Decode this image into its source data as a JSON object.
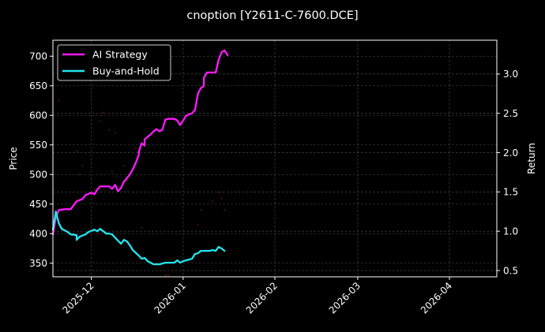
{
  "chart_data": {
    "type": "line",
    "title": "cnoption [Y2611-C-7600.DCE]",
    "xlabel": "",
    "ylabel_left": "Price",
    "ylabel_right": "Return",
    "background": "#000000",
    "grid": true,
    "legend_position": "upper left",
    "x_ticks": [
      "2025-12",
      "2026-01",
      "2026-02",
      "2026-03",
      "2026-04"
    ],
    "x_range": [
      "2025-11-18",
      "2026-04-17"
    ],
    "y_left_ticks": [
      350,
      400,
      450,
      500,
      550,
      600,
      650,
      700
    ],
    "y_left_range": [
      327,
      727
    ],
    "y_right_ticks": [
      0.5,
      1.0,
      1.5,
      2.0,
      2.5,
      3.0
    ],
    "y_right_range": [
      0.42,
      3.43
    ],
    "series": [
      {
        "name": "AI Strategy",
        "axis": "right",
        "color": "#ff1aff",
        "x": [
          "2025-11-18",
          "2025-11-19",
          "2025-11-20",
          "2025-11-22",
          "2025-11-24",
          "2025-11-25",
          "2025-11-26",
          "2025-11-28",
          "2025-11-29",
          "2025-12-01",
          "2025-12-02",
          "2025-12-03",
          "2025-12-04",
          "2025-12-06",
          "2025-12-07",
          "2025-12-08",
          "2025-12-09",
          "2025-12-10",
          "2025-12-11",
          "2025-12-12",
          "2025-12-14",
          "2025-12-15",
          "2025-12-16",
          "2025-12-17",
          "2025-12-17",
          "2025-12-18",
          "2025-12-19",
          "2025-12-19",
          "2025-12-21",
          "2025-12-22",
          "2025-12-23",
          "2025-12-24",
          "2025-12-25",
          "2025-12-26",
          "2025-12-27",
          "2025-12-29",
          "2025-12-30",
          "2025-12-31",
          "2026-01-01",
          "2026-01-02",
          "2026-01-04",
          "2026-01-05",
          "2026-01-06",
          "2026-01-07",
          "2026-01-08",
          "2026-01-08",
          "2026-01-09",
          "2026-01-10",
          "2026-01-12",
          "2026-01-13",
          "2026-01-14",
          "2026-01-15",
          "2026-01-16"
        ],
        "values": [
          0.96,
          1.18,
          1.27,
          1.28,
          1.28,
          1.33,
          1.38,
          1.41,
          1.46,
          1.49,
          1.47,
          1.53,
          1.57,
          1.57,
          1.57,
          1.54,
          1.59,
          1.51,
          1.55,
          1.63,
          1.72,
          1.79,
          1.87,
          1.97,
          2.01,
          2.12,
          2.09,
          2.17,
          2.23,
          2.27,
          2.3,
          2.27,
          2.29,
          2.42,
          2.43,
          2.43,
          2.41,
          2.35,
          2.41,
          2.47,
          2.5,
          2.54,
          2.75,
          2.82,
          2.85,
          2.95,
          3.02,
          3.02,
          3.02,
          3.18,
          3.28,
          3.3,
          3.24
        ]
      },
      {
        "name": "Buy-and-Hold",
        "axis": "right",
        "color": "#22e5ee",
        "x": [
          "2025-11-18",
          "2025-11-19",
          "2025-11-20",
          "2025-11-21",
          "2025-11-23",
          "2025-11-24",
          "2025-11-26",
          "2025-11-26",
          "2025-11-27",
          "2025-11-29",
          "2025-11-30",
          "2025-12-02",
          "2025-12-03",
          "2025-12-04",
          "2025-12-05",
          "2025-12-06",
          "2025-12-07",
          "2025-12-08",
          "2025-12-10",
          "2025-12-11",
          "2025-12-12",
          "2025-12-13",
          "2025-12-14",
          "2025-12-15",
          "2025-12-17",
          "2025-12-18",
          "2025-12-19",
          "2025-12-20",
          "2025-12-21",
          "2025-12-22",
          "2025-12-24",
          "2025-12-25",
          "2025-12-26",
          "2025-12-27",
          "2025-12-29",
          "2025-12-30",
          "2025-12-31",
          "2026-01-01",
          "2026-01-02",
          "2026-01-04",
          "2026-01-05",
          "2026-01-06",
          "2026-01-07",
          "2026-01-08",
          "2026-01-09",
          "2026-01-10",
          "2026-01-11",
          "2026-01-12",
          "2026-01-13",
          "2026-01-14",
          "2026-01-15"
        ],
        "values": [
          1.02,
          1.25,
          1.1,
          1.03,
          0.99,
          0.96,
          0.95,
          0.89,
          0.93,
          0.96,
          0.99,
          1.02,
          1.0,
          1.03,
          1.0,
          0.97,
          0.97,
          0.96,
          0.88,
          0.84,
          0.89,
          0.87,
          0.82,
          0.76,
          0.69,
          0.65,
          0.66,
          0.62,
          0.6,
          0.58,
          0.58,
          0.59,
          0.6,
          0.6,
          0.6,
          0.63,
          0.6,
          0.62,
          0.63,
          0.65,
          0.71,
          0.72,
          0.75,
          0.75,
          0.75,
          0.75,
          0.76,
          0.75,
          0.8,
          0.78,
          0.75
        ]
      },
      {
        "name": "Price",
        "axis": "left",
        "type": "scatter",
        "color": "#8b0a14",
        "marker_size": "tiny",
        "x": [
          "2025-11-20",
          "2025-11-26",
          "2025-11-27",
          "2025-11-28",
          "2025-12-02",
          "2025-12-04",
          "2025-12-05",
          "2025-12-07",
          "2025-12-08",
          "2025-12-09",
          "2025-12-12",
          "2025-12-13",
          "2025-12-15",
          "2025-12-16",
          "2025-12-18",
          "2025-12-26",
          "2025-12-27",
          "2026-01-04",
          "2026-01-06",
          "2026-01-07",
          "2026-01-11",
          "2026-01-13",
          "2026-01-14",
          "2026-01-15"
        ],
        "values": [
          625,
          540,
          500,
          515,
          475,
          590,
          605,
          575,
          505,
          570,
          515,
          490,
          470,
          545,
          410,
          330,
          330,
          660,
          415,
          440,
          455,
          470,
          460,
          440
        ]
      }
    ]
  },
  "legend": {
    "items": [
      {
        "label": "AI Strategy",
        "color": "#ff1aff"
      },
      {
        "label": "Buy-and-Hold",
        "color": "#22e5ee"
      }
    ]
  }
}
